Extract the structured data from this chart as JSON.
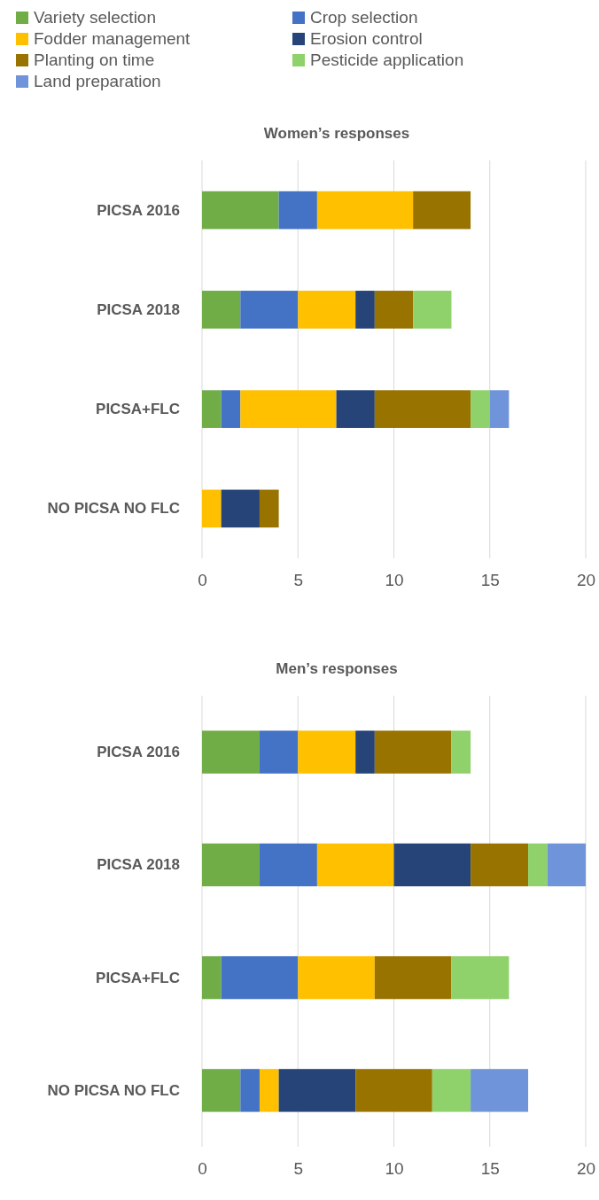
{
  "chart_data": [
    {
      "type": "bar",
      "orientation": "horizontal",
      "stacked": true,
      "title": "Women’s responses",
      "categories": [
        "PICSA 2016",
        "PICSA 2018",
        "PICSA+FLC",
        "NO PICSA NO FLC"
      ],
      "xlim": [
        0,
        20
      ],
      "xticks": [
        0,
        5,
        10,
        15,
        20
      ],
      "grid": "x",
      "legend": "top left",
      "series": [
        {
          "name": "Variety selection",
          "color": "#70ad47",
          "values": [
            4,
            2,
            1,
            null
          ]
        },
        {
          "name": "Crop selection",
          "color": "#4472c4",
          "values": [
            2,
            3,
            1,
            null
          ]
        },
        {
          "name": "Fodder management",
          "color": "#ffc000",
          "values": [
            5,
            3,
            5,
            1
          ]
        },
        {
          "name": "Erosion control",
          "color": "#264478",
          "values": [
            null,
            1,
            2,
            2
          ]
        },
        {
          "name": "Planting on time",
          "color": "#997300",
          "values": [
            3,
            2,
            5,
            1
          ]
        },
        {
          "name": "Pesticide application",
          "color": "#8fd16a",
          "values": [
            null,
            2,
            1,
            null
          ]
        },
        {
          "name": "Land preparation",
          "color": "#6f94d9",
          "values": [
            null,
            null,
            1,
            null
          ]
        }
      ]
    },
    {
      "type": "bar",
      "orientation": "horizontal",
      "stacked": true,
      "title": "Men’s responses",
      "categories": [
        "PICSA 2016",
        "PICSA 2018",
        "PICSA+FLC",
        "NO PICSA NO FLC"
      ],
      "xlim": [
        0,
        20
      ],
      "xticks": [
        0,
        5,
        10,
        15,
        20
      ],
      "grid": "x",
      "series": [
        {
          "color": "#70ad47",
          "values": [
            3,
            3,
            1,
            2
          ]
        },
        {
          "color": "#4472c4",
          "values": [
            2,
            3,
            4,
            1
          ]
        },
        {
          "color": "#ffc000",
          "values": [
            3,
            4,
            4,
            1
          ]
        },
        {
          "color": "#264478",
          "values": [
            1,
            4,
            null,
            4
          ]
        },
        {
          "color": "#997300",
          "values": [
            4,
            3,
            4,
            4
          ]
        },
        {
          "color": "#8fd16a",
          "values": [
            1,
            1,
            3,
            2
          ]
        },
        {
          "color": "#6f94d9",
          "values": [
            null,
            2,
            null,
            3
          ]
        }
      ]
    }
  ]
}
